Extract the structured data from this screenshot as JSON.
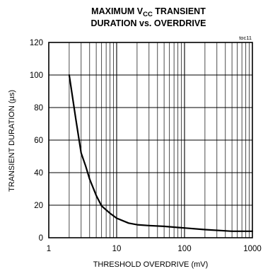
{
  "chart_data": {
    "type": "line",
    "title_line1_prefix": "MAXIMUM V",
    "title_line1_sub": "CC",
    "title_line1_suffix": " TRANSIENT",
    "title_line2": "DURATION vs. OVERDRIVE",
    "tag": "toc11",
    "xlabel": "THRESHOLD OVERDRIVE (mV)",
    "ylabel": "TRANSIENT DURATION (µs)",
    "x_scale": "log",
    "xlim": [
      1,
      1000
    ],
    "ylim": [
      0,
      120
    ],
    "x_ticks": [
      "1",
      "10",
      "100",
      "1000"
    ],
    "y_ticks": [
      "0",
      "20",
      "40",
      "60",
      "80",
      "100",
      "120"
    ],
    "grid": true,
    "series": [
      {
        "x": [
          2,
          2.5,
          3,
          3.5,
          4,
          5,
          6,
          8,
          10,
          15,
          20,
          30,
          50,
          100,
          200,
          500,
          1000
        ],
        "y": [
          100,
          73,
          52,
          44,
          36,
          26,
          19.5,
          15,
          12,
          9,
          8,
          7.5,
          7,
          6,
          5,
          4,
          4
        ]
      }
    ]
  }
}
